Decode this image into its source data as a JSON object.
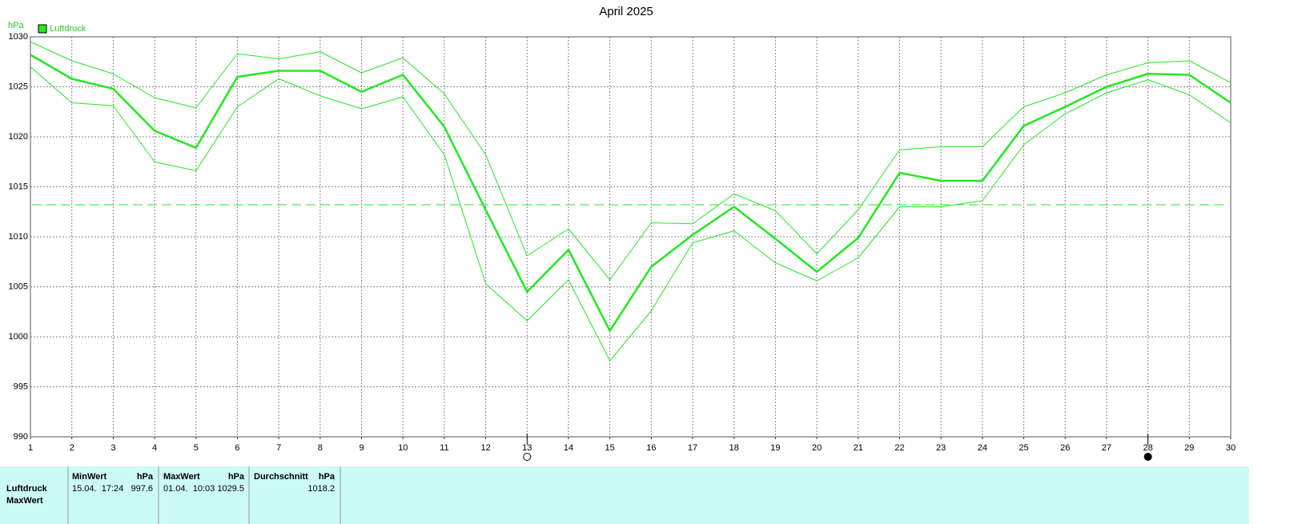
{
  "chart_data": {
    "type": "line",
    "title": "April 2025",
    "y_unit": "hPa",
    "x": [
      1,
      2,
      3,
      4,
      5,
      6,
      7,
      8,
      9,
      10,
      11,
      12,
      13,
      14,
      15,
      16,
      17,
      18,
      19,
      20,
      21,
      22,
      23,
      24,
      25,
      26,
      27,
      28,
      29,
      30
    ],
    "series": [
      {
        "name": "Luftdruck",
        "color": "#22e822",
        "width": 2.5,
        "values": [
          1028.2,
          1025.8,
          1024.8,
          1020.6,
          1018.9,
          1026.0,
          1026.6,
          1026.6,
          1024.5,
          1026.2,
          1021.0,
          1012.7,
          1004.5,
          1008.7,
          1000.6,
          1007.0,
          1010.2,
          1013.0,
          1009.8,
          1006.5,
          1009.9,
          1016.4,
          1015.6,
          1015.6,
          1021.1,
          1023.0,
          1025.0,
          1026.3,
          1026.2,
          1023.4
        ]
      },
      {
        "color": "#22e822",
        "width": 1,
        "values": [
          1029.5,
          1027.6,
          1026.3,
          1023.9,
          1022.9,
          1028.3,
          1027.8,
          1028.5,
          1026.4,
          1027.9,
          1024.3,
          1018.2,
          1008.1,
          1010.8,
          1005.7,
          1011.4,
          1011.3,
          1014.3,
          1012.6,
          1008.3,
          1012.7,
          1018.7,
          1019.0,
          1019.0,
          1023.0,
          1024.4,
          1026.2,
          1027.4,
          1027.6,
          1025.4
        ]
      },
      {
        "color": "#22e822",
        "width": 1,
        "values": [
          1027.0,
          1023.4,
          1023.1,
          1017.5,
          1016.6,
          1023.0,
          1025.8,
          1024.1,
          1022.8,
          1024.0,
          1018.2,
          1005.3,
          1001.6,
          1005.7,
          997.6,
          1002.6,
          1009.4,
          1010.6,
          1007.4,
          1005.6,
          1007.9,
          1013.0,
          1013.0,
          1013.6,
          1019.2,
          1022.3,
          1024.4,
          1025.7,
          1024.2,
          1021.4
        ]
      }
    ],
    "reference_line": 1013.2,
    "xlim": [
      1,
      30
    ],
    "xticks": [
      1,
      2,
      3,
      4,
      5,
      6,
      7,
      8,
      9,
      10,
      11,
      12,
      13,
      14,
      15,
      16,
      17,
      18,
      19,
      20,
      21,
      22,
      23,
      24,
      25,
      26,
      27,
      28,
      29,
      30
    ],
    "ylim": [
      990,
      1030
    ],
    "yticks": [
      990,
      995,
      1000,
      1005,
      1010,
      1015,
      1020,
      1025,
      1030
    ],
    "grid": true,
    "legend": "top-left",
    "moon_phases": [
      {
        "day": 13,
        "filled": false
      },
      {
        "day": 28,
        "filled": true
      }
    ]
  },
  "table": {
    "columns": [
      {
        "title": "MinWert",
        "unit": "hPa"
      },
      {
        "title": "MaxWert",
        "unit": "hPa"
      },
      {
        "title": "Durchschnitt",
        "unit": "hPa"
      }
    ],
    "rows": [
      {
        "label": "Luftdruck",
        "cells": [
          {
            "time": "15.04.  17:24",
            "value": "997.6"
          },
          {
            "time": "01.04.  10:03",
            "value": "1029.5"
          },
          {
            "value": "1018.2"
          }
        ]
      },
      {
        "label": "MaxWert"
      }
    ]
  }
}
